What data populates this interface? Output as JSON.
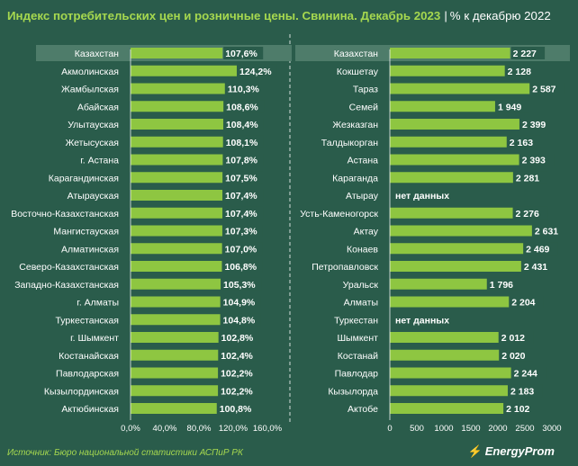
{
  "title": {
    "main": "Индекс потребительских цен и розничные цены. Свинина. Декабрь 2023",
    "separator": "|",
    "sub": "% к декабрю 2022"
  },
  "source": "Источник: Бюро национальной статистики АСПиР РК",
  "logo": "EnergyProm",
  "colors": {
    "background": "#2a5c4b",
    "bar": "#8ec641",
    "accent": "#a6d84f",
    "highlight_row": "#4e7c6a",
    "text": "#ffffff"
  },
  "chart_data": [
    {
      "type": "bar",
      "orientation": "horizontal",
      "highlight": "Казахстан",
      "categories": [
        "Казахстан",
        "Акмолинская",
        "Жамбылская",
        "Абайская",
        "Улытауская",
        "Жетысуская",
        "г. Астана",
        "Карагандинская",
        "Атырауская",
        "Восточно-Казахстанская",
        "Мангистауская",
        "Алматинская",
        "Северо-Казахстанская",
        "Западно-Казахстанская",
        "г. Алматы",
        "Туркестанская",
        "г. Шымкент",
        "Костанайская",
        "Павлодарская",
        "Кызылординская",
        "Актюбинская"
      ],
      "values": [
        107.6,
        124.2,
        110.3,
        108.6,
        108.4,
        108.1,
        107.8,
        107.5,
        107.4,
        107.4,
        107.3,
        107.0,
        106.8,
        105.3,
        104.9,
        104.8,
        102.8,
        102.4,
        102.2,
        102.2,
        100.8
      ],
      "value_labels": [
        "107,6%",
        "124,2%",
        "110,3%",
        "108,6%",
        "108,4%",
        "108,1%",
        "107,8%",
        "107,5%",
        "107,4%",
        "107,4%",
        "107,3%",
        "107,0%",
        "106,8%",
        "105,3%",
        "104,9%",
        "104,8%",
        "102,8%",
        "102,4%",
        "102,2%",
        "102,2%",
        "100,8%"
      ],
      "xlim": [
        0,
        160
      ],
      "xticks": [
        0,
        40,
        80,
        120,
        160
      ],
      "xtick_labels": [
        "0,0%",
        "40,0%",
        "80,0%",
        "120,0%",
        "160,0%"
      ]
    },
    {
      "type": "bar",
      "orientation": "horizontal",
      "highlight": "Казахстан",
      "categories": [
        "Казахстан",
        "Кокшетау",
        "Тараз",
        "Семей",
        "Жезказган",
        "Талдыкорган",
        "Астана",
        "Караганда",
        "Атырау",
        "Усть-Каменогорск",
        "Актау",
        "Конаев",
        "Петропавловск",
        "Уральск",
        "Алматы",
        "Туркестан",
        "Шымкент",
        "Костанай",
        "Павлодар",
        "Кызылорда",
        "Актобе"
      ],
      "values": [
        2227,
        2128,
        2587,
        1949,
        2399,
        2163,
        2393,
        2281,
        null,
        2276,
        2631,
        2469,
        2431,
        1796,
        2204,
        null,
        2012,
        2020,
        2244,
        2183,
        2102
      ],
      "value_labels": [
        "2 227",
        "2 128",
        "2 587",
        "1 949",
        "2 399",
        "2 163",
        "2 393",
        "2 281",
        "нет данных",
        "2 276",
        "2 631",
        "2 469",
        "2 431",
        "1 796",
        "2 204",
        "нет данных",
        "2 012",
        "2 020",
        "2 244",
        "2 183",
        "2 102"
      ],
      "xlim": [
        0,
        3000
      ],
      "xticks": [
        0,
        500,
        1000,
        1500,
        2000,
        2500,
        3000
      ],
      "xtick_labels": [
        "0",
        "500",
        "1000",
        "1500",
        "2000",
        "2500",
        "3000"
      ]
    }
  ]
}
